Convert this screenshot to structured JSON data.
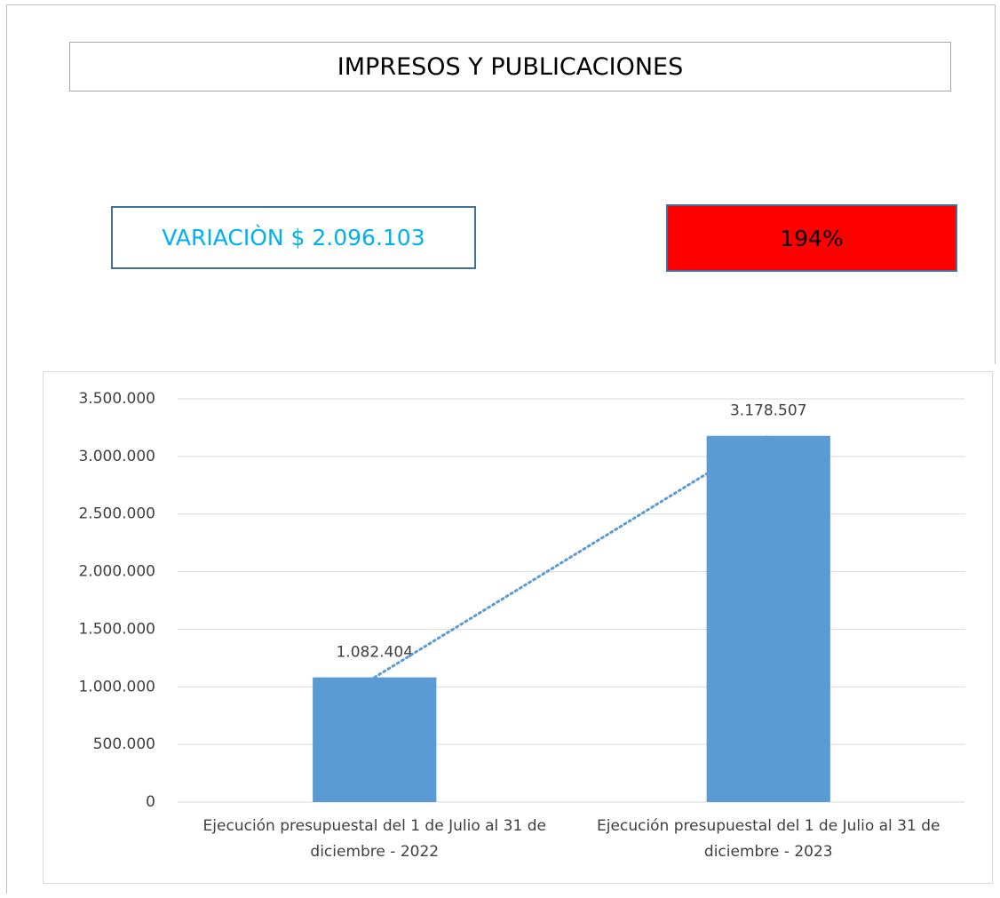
{
  "header": {
    "title": "IMPRESOS Y PUBLICACIONES"
  },
  "summary": {
    "variation": "VARIACIÒN $ 2.096.103",
    "percent": "194%"
  },
  "chart_data": {
    "type": "bar",
    "categories": [
      "Ejecución presupuestal del 1 de Julio al 31 de diciembre - 2022",
      "Ejecución presupuestal del 1 de Julio al 31 de diciembre - 2023"
    ],
    "values": [
      1082404,
      3178507
    ],
    "value_labels": [
      "1.082.404",
      "3.178.507"
    ],
    "color": "#5b9bd5",
    "trendline": true,
    "trendline_color": "#5b9bd5",
    "ylim": [
      0,
      3500000
    ],
    "yticks": [
      0,
      {
        "value": 500000,
        "label": "500.000"
      },
      {
        "value": 1000000,
        "label": "1.000.000"
      },
      {
        "value": 1500000,
        "label": "1.500.000"
      },
      {
        "value": 2000000,
        "label": "2.000.000"
      },
      {
        "value": 2500000,
        "label": "2.500.000"
      },
      {
        "value": 3000000,
        "label": "3.000.000"
      },
      {
        "value": 3500000,
        "label": "3.500.000"
      }
    ],
    "grid": true
  }
}
